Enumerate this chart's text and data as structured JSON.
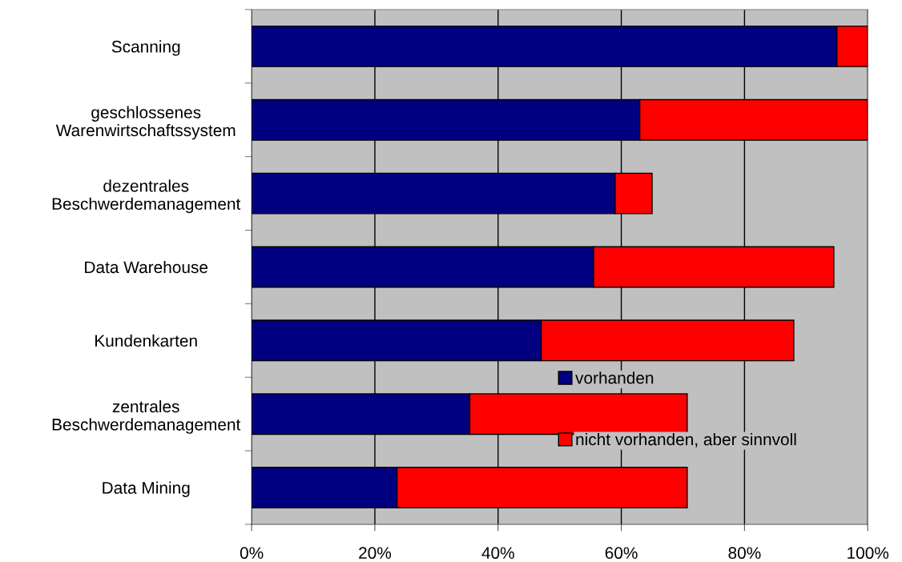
{
  "chart_data": {
    "type": "bar",
    "orientation": "horizontal",
    "stacked": true,
    "categories": [
      "Scanning",
      "geschlossenes\nWarenwirtschaftssystem",
      "dezentrales\nBeschwerdemanagement",
      "Data Warehouse",
      "Kundenkarten",
      "zentrales\nBeschwerdemanagement",
      "Data Mining"
    ],
    "series": [
      {
        "name": "vorhanden",
        "color": "#000080",
        "values": [
          95,
          63,
          59,
          55.5,
          47,
          35.4,
          23.6
        ]
      },
      {
        "name": "nicht vorhanden, aber sinnvoll",
        "color": "#ff0000",
        "values": [
          5,
          37,
          6,
          39,
          41,
          35.3,
          47.1
        ]
      }
    ],
    "xlim": [
      0,
      100
    ],
    "xticks": [
      {
        "value": 0,
        "label": "0%"
      },
      {
        "value": 20,
        "label": "20%"
      },
      {
        "value": 40,
        "label": "40%"
      },
      {
        "value": 60,
        "label": "60%"
      },
      {
        "value": 80,
        "label": "80%"
      },
      {
        "value": 100,
        "label": "100%"
      }
    ],
    "grid": "x",
    "legend": "bottom right"
  }
}
